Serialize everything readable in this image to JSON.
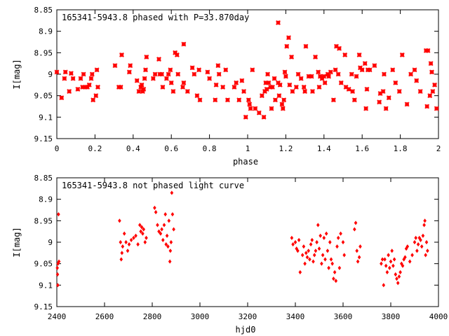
{
  "colors": {
    "points": "#ff0000",
    "axes": "#000000",
    "background": "#ffffff"
  },
  "chart_data": [
    {
      "type": "scatter",
      "title": "165341-5943.8 phased with P=33.870day",
      "xlabel": "phase",
      "ylabel": "I[mag]",
      "xlim": [
        0,
        2
      ],
      "ylim": [
        8.85,
        9.15
      ],
      "y_inverted": true,
      "grid": false,
      "legend": "none",
      "marker": "star",
      "xticks": [
        "0",
        "0.2",
        "0.4",
        "0.6",
        "0.8",
        "1",
        "1.2",
        "1.4",
        "1.6",
        "1.8",
        "2"
      ],
      "xtick_values": [
        0,
        0.2,
        0.4,
        0.6,
        0.8,
        1.0,
        1.2,
        1.4,
        1.6,
        1.8,
        2.0
      ],
      "yticks": [
        "8.85",
        "8.9",
        "8.95",
        "9",
        "9.05",
        "9.1",
        "9.15"
      ],
      "ytick_values": [
        8.85,
        8.9,
        8.95,
        9.0,
        9.05,
        9.1,
        9.15
      ],
      "points": [
        [
          0.0,
          8.995
        ],
        [
          0.025,
          9.055
        ],
        [
          0.04,
          9.01
        ],
        [
          0.045,
          8.995
        ],
        [
          0.065,
          9.04
        ],
        [
          0.075,
          8.998
        ],
        [
          0.085,
          9.01
        ],
        [
          0.11,
          9.035
        ],
        [
          0.125,
          9.01
        ],
        [
          0.135,
          9.03
        ],
        [
          0.14,
          9.0
        ],
        [
          0.15,
          9.03
        ],
        [
          0.16,
          9.03
        ],
        [
          0.17,
          9.025
        ],
        [
          0.18,
          9.01
        ],
        [
          0.185,
          9.0
        ],
        [
          0.19,
          9.06
        ],
        [
          0.205,
          9.05
        ],
        [
          0.21,
          8.99
        ],
        [
          0.215,
          9.03
        ],
        [
          0.305,
          8.98
        ],
        [
          0.325,
          9.03
        ],
        [
          0.335,
          9.03
        ],
        [
          0.34,
          8.955
        ],
        [
          0.38,
          8.995
        ],
        [
          0.385,
          8.98
        ],
        [
          0.42,
          9.015
        ],
        [
          0.43,
          9.04
        ],
        [
          0.44,
          9.03
        ],
        [
          0.445,
          9.025
        ],
        [
          0.45,
          9.04
        ],
        [
          0.455,
          9.035
        ],
        [
          0.46,
          9.01
        ],
        [
          0.465,
          8.99
        ],
        [
          0.47,
          8.96
        ],
        [
          0.505,
          9.01
        ],
        [
          0.515,
          9.0
        ],
        [
          0.535,
          8.965
        ],
        [
          0.54,
          9.0
        ],
        [
          0.55,
          9.0
        ],
        [
          0.555,
          9.03
        ],
        [
          0.575,
          9.01
        ],
        [
          0.585,
          9.0
        ],
        [
          0.595,
          8.99
        ],
        [
          0.6,
          9.02
        ],
        [
          0.61,
          9.04
        ],
        [
          0.62,
          8.95
        ],
        [
          0.63,
          8.955
        ],
        [
          0.635,
          9.0
        ],
        [
          0.66,
          9.03
        ],
        [
          0.665,
          9.02
        ],
        [
          0.665,
          8.93
        ],
        [
          0.685,
          9.04
        ],
        [
          0.71,
          8.985
        ],
        [
          0.72,
          9.0
        ],
        [
          0.735,
          9.05
        ],
        [
          0.745,
          8.99
        ],
        [
          0.75,
          9.06
        ],
        [
          0.79,
          8.995
        ],
        [
          0.8,
          9.01
        ],
        [
          0.83,
          9.06
        ],
        [
          0.835,
          9.025
        ],
        [
          0.845,
          8.98
        ],
        [
          0.85,
          9.0
        ],
        [
          0.87,
          9.03
        ],
        [
          0.885,
          8.99
        ],
        [
          0.895,
          9.06
        ],
        [
          0.93,
          9.03
        ],
        [
          0.94,
          9.02
        ],
        [
          0.955,
          9.06
        ],
        [
          0.97,
          9.015
        ],
        [
          0.98,
          9.04
        ],
        [
          0.99,
          9.1
        ],
        [
          1.005,
          9.06
        ],
        [
          1.01,
          9.07
        ],
        [
          1.015,
          9.08
        ],
        [
          1.025,
          8.99
        ],
        [
          1.04,
          9.08
        ],
        [
          1.06,
          9.09
        ],
        [
          1.075,
          9.05
        ],
        [
          1.085,
          9.1
        ],
        [
          1.09,
          9.04
        ],
        [
          1.095,
          9.02
        ],
        [
          1.1,
          9.035
        ],
        [
          1.105,
          9.0
        ],
        [
          1.11,
          9.02
        ],
        [
          1.12,
          9.03
        ],
        [
          1.125,
          9.08
        ],
        [
          1.13,
          9.03
        ],
        [
          1.14,
          9.01
        ],
        [
          1.145,
          9.06
        ],
        [
          1.16,
          8.88
        ],
        [
          1.16,
          9.02
        ],
        [
          1.165,
          9.05
        ],
        [
          1.17,
          9.025
        ],
        [
          1.18,
          9.07
        ],
        [
          1.185,
          9.08
        ],
        [
          1.19,
          9.06
        ],
        [
          1.195,
          8.995
        ],
        [
          1.2,
          9.005
        ],
        [
          1.205,
          8.935
        ],
        [
          1.215,
          8.915
        ],
        [
          1.22,
          9.025
        ],
        [
          1.23,
          8.96
        ],
        [
          1.235,
          9.04
        ],
        [
          1.255,
          9.03
        ],
        [
          1.265,
          9.0
        ],
        [
          1.28,
          9.01
        ],
        [
          1.295,
          9.03
        ],
        [
          1.3,
          9.04
        ],
        [
          1.305,
          8.935
        ],
        [
          1.32,
          9.005
        ],
        [
          1.335,
          9.005
        ],
        [
          1.34,
          9.04
        ],
        [
          1.355,
          8.96
        ],
        [
          1.37,
          8.995
        ],
        [
          1.375,
          9.03
        ],
        [
          1.38,
          9.005
        ],
        [
          1.39,
          9.01
        ],
        [
          1.4,
          9.005
        ],
        [
          1.405,
          9.02
        ],
        [
          1.42,
          9.0
        ],
        [
          1.425,
          9.005
        ],
        [
          1.435,
          8.995
        ],
        [
          1.45,
          9.06
        ],
        [
          1.46,
          8.99
        ],
        [
          1.465,
          8.935
        ],
        [
          1.475,
          9.0
        ],
        [
          1.48,
          8.94
        ],
        [
          1.49,
          9.02
        ],
        [
          1.51,
          8.955
        ],
        [
          1.515,
          9.03
        ],
        [
          1.53,
          9.035
        ],
        [
          1.545,
          9.0
        ],
        [
          1.55,
          9.04
        ],
        [
          1.56,
          9.06
        ],
        [
          1.57,
          9.005
        ],
        [
          1.585,
          8.955
        ],
        [
          1.59,
          8.985
        ],
        [
          1.6,
          8.99
        ],
        [
          1.615,
          8.975
        ],
        [
          1.62,
          9.08
        ],
        [
          1.625,
          9.035
        ],
        [
          1.63,
          8.99
        ],
        [
          1.64,
          8.99
        ],
        [
          1.665,
          8.98
        ],
        [
          1.69,
          9.065
        ],
        [
          1.695,
          9.045
        ],
        [
          1.71,
          9.04
        ],
        [
          1.715,
          9.0
        ],
        [
          1.725,
          9.08
        ],
        [
          1.74,
          9.055
        ],
        [
          1.76,
          8.99
        ],
        [
          1.775,
          9.02
        ],
        [
          1.795,
          9.04
        ],
        [
          1.81,
          8.955
        ],
        [
          1.835,
          9.07
        ],
        [
          1.855,
          9.0
        ],
        [
          1.875,
          8.99
        ],
        [
          1.885,
          9.015
        ],
        [
          1.905,
          9.04
        ],
        [
          1.935,
          8.945
        ],
        [
          1.94,
          9.075
        ],
        [
          1.945,
          8.945
        ],
        [
          1.955,
          9.05
        ],
        [
          1.96,
          8.975
        ],
        [
          1.965,
          8.995
        ],
        [
          1.97,
          9.04
        ],
        [
          1.98,
          9.025
        ],
        [
          1.99,
          9.08
        ]
      ]
    },
    {
      "type": "scatter",
      "title": "165341-5943.8 not phased light curve",
      "xlabel": "hjd0",
      "ylabel": "I[mag]",
      "xlim": [
        2400,
        4000
      ],
      "ylim": [
        8.85,
        9.15
      ],
      "y_inverted": true,
      "grid": false,
      "legend": "none",
      "marker": "diamond",
      "xticks": [
        "2400",
        "2600",
        "2800",
        "3000",
        "3200",
        "3400",
        "3600",
        "3800",
        "4000"
      ],
      "xtick_values": [
        2400,
        2600,
        2800,
        3000,
        3200,
        3400,
        3600,
        3800,
        4000
      ],
      "yticks": [
        "8.85",
        "8.9",
        "8.95",
        "9",
        "9.05",
        "9.1",
        "9.15"
      ],
      "ytick_values": [
        8.85,
        8.9,
        8.95,
        9.0,
        9.05,
        9.1,
        9.15
      ],
      "points": [
        [
          2402,
          9.06
        ],
        [
          2403,
          9.075
        ],
        [
          2404,
          9.1
        ],
        [
          2405,
          9.05
        ],
        [
          2407,
          8.935
        ],
        [
          2409,
          9.045
        ],
        [
          2663,
          8.95
        ],
        [
          2667,
          9.0
        ],
        [
          2670,
          9.04
        ],
        [
          2673,
          9.025
        ],
        [
          2676,
          9.01
        ],
        [
          2683,
          8.98
        ],
        [
          2690,
          9.0
        ],
        [
          2697,
          9.02
        ],
        [
          2703,
          9.005
        ],
        [
          2712,
          8.995
        ],
        [
          2722,
          8.99
        ],
        [
          2731,
          8.985
        ],
        [
          2740,
          9.005
        ],
        [
          2748,
          8.96
        ],
        [
          2752,
          8.975
        ],
        [
          2756,
          8.965
        ],
        [
          2760,
          8.98
        ],
        [
          2764,
          8.97
        ],
        [
          2770,
          9.0
        ],
        [
          2775,
          8.99
        ],
        [
          2810,
          8.92
        ],
        [
          2815,
          8.93
        ],
        [
          2822,
          8.96
        ],
        [
          2828,
          8.975
        ],
        [
          2835,
          8.98
        ],
        [
          2840,
          8.97
        ],
        [
          2845,
          8.995
        ],
        [
          2850,
          8.96
        ],
        [
          2855,
          8.935
        ],
        [
          2858,
          9.005
        ],
        [
          2862,
          8.985
        ],
        [
          2866,
          9.01
        ],
        [
          2870,
          8.95
        ],
        [
          2874,
          9.045
        ],
        [
          2876,
          9.02
        ],
        [
          2879,
          9.0
        ],
        [
          2882,
          8.885
        ],
        [
          2885,
          8.935
        ],
        [
          2890,
          8.97
        ],
        [
          3385,
          8.99
        ],
        [
          3390,
          9.005
        ],
        [
          3400,
          9.0
        ],
        [
          3405,
          9.015
        ],
        [
          3410,
          9.02
        ],
        [
          3415,
          8.995
        ],
        [
          3420,
          9.07
        ],
        [
          3430,
          9.03
        ],
        [
          3435,
          9.01
        ],
        [
          3440,
          9.05
        ],
        [
          3445,
          9.025
        ],
        [
          3450,
          9.035
        ],
        [
          3455,
          9.02
        ],
        [
          3460,
          9.04
        ],
        [
          3465,
          9.005
        ],
        [
          3470,
          8.995
        ],
        [
          3475,
          9.045
        ],
        [
          3480,
          9.03
        ],
        [
          3485,
          9.02
        ],
        [
          3490,
          9.0
        ],
        [
          3495,
          8.96
        ],
        [
          3500,
          9.015
        ],
        [
          3505,
          8.985
        ],
        [
          3510,
          9.05
        ],
        [
          3515,
          9.03
        ],
        [
          3520,
          8.99
        ],
        [
          3525,
          9.04
        ],
        [
          3530,
          8.98
        ],
        [
          3535,
          9.02
        ],
        [
          3540,
          9.06
        ],
        [
          3545,
          9.0
        ],
        [
          3550,
          9.04
        ],
        [
          3555,
          9.05
        ],
        [
          3560,
          9.085
        ],
        [
          3565,
          9.07
        ],
        [
          3570,
          9.09
        ],
        [
          3575,
          9.01
        ],
        [
          3580,
          8.99
        ],
        [
          3585,
          9.06
        ],
        [
          3590,
          8.98
        ],
        [
          3600,
          9.0
        ],
        [
          3605,
          9.03
        ],
        [
          3648,
          8.97
        ],
        [
          3653,
          8.955
        ],
        [
          3658,
          9.02
        ],
        [
          3662,
          9.045
        ],
        [
          3668,
          9.035
        ],
        [
          3672,
          9.01
        ],
        [
          3760,
          9.05
        ],
        [
          3765,
          9.04
        ],
        [
          3770,
          9.1
        ],
        [
          3775,
          9.04
        ],
        [
          3780,
          9.055
        ],
        [
          3785,
          9.07
        ],
        [
          3790,
          9.03
        ],
        [
          3795,
          9.06
        ],
        [
          3800,
          9.045
        ],
        [
          3805,
          9.02
        ],
        [
          3810,
          9.055
        ],
        [
          3815,
          9.04
        ],
        [
          3820,
          9.075
        ],
        [
          3825,
          9.085
        ],
        [
          3830,
          9.095
        ],
        [
          3835,
          9.08
        ],
        [
          3840,
          9.07
        ],
        [
          3845,
          9.05
        ],
        [
          3850,
          9.055
        ],
        [
          3855,
          9.04
        ],
        [
          3860,
          9.035
        ],
        [
          3865,
          9.015
        ],
        [
          3870,
          9.01
        ],
        [
          3880,
          9.045
        ],
        [
          3890,
          9.03
        ],
        [
          3900,
          9.0
        ],
        [
          3905,
          8.99
        ],
        [
          3910,
          9.02
        ],
        [
          3915,
          9.005
        ],
        [
          3920,
          8.99
        ],
        [
          3925,
          8.995
        ],
        [
          3930,
          9.01
        ],
        [
          3935,
          8.985
        ],
        [
          3940,
          8.96
        ],
        [
          3943,
          8.95
        ],
        [
          3946,
          9.03
        ],
        [
          3950,
          9.0
        ],
        [
          3954,
          9.02
        ]
      ]
    }
  ]
}
